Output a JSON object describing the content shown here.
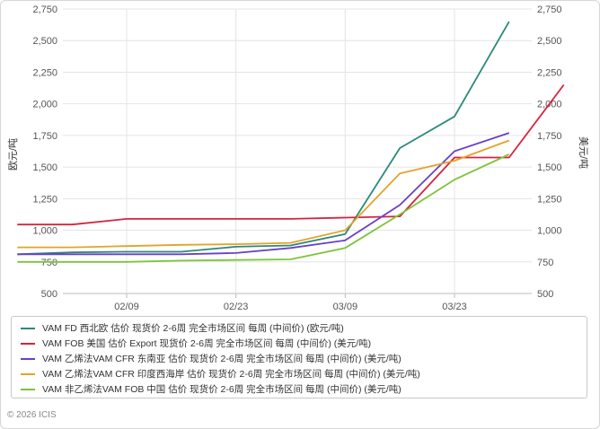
{
  "chart_data": {
    "type": "line",
    "x_ticks": [
      "02/09",
      "02/23",
      "03/09",
      "03/23"
    ],
    "left_axis": {
      "label": "欧元/吨",
      "ylim": [
        500,
        2750
      ],
      "ticks": [
        "500",
        "750",
        "1,000",
        "1,250",
        "1,500",
        "1,750",
        "2,000",
        "2,250",
        "2,500",
        "2,750"
      ]
    },
    "right_axis": {
      "label": "美元/吨",
      "ylim": [
        500,
        2750
      ],
      "ticks": [
        "500",
        "750",
        "1,000",
        "1,250",
        "1,500",
        "1,750",
        "2,000",
        "2,250",
        "2,500",
        "2,750"
      ]
    },
    "grid": true,
    "legend_position": "bottom",
    "series": [
      {
        "name": "VAM FD 西北欧 估价 现货价 2-6周 完全市场区间 每周 (中间价) (欧元/吨)",
        "color": "#2a8a7a",
        "points": [
          [
            "01/26",
            810
          ],
          [
            "02/02",
            825
          ],
          [
            "02/09",
            830
          ],
          [
            "02/16",
            830
          ],
          [
            "02/23",
            870
          ],
          [
            "03/02",
            880
          ],
          [
            "03/09",
            970
          ],
          [
            "03/16",
            1650
          ],
          [
            "03/23",
            1900
          ],
          [
            "03/30",
            2650
          ]
        ]
      },
      {
        "name": "VAM FOB 美国 估价 Export 现货价 2-6周 完全市场区间 每周 (中间价) (美元/吨)",
        "color": "#d4243f",
        "points": [
          [
            "01/26",
            1045
          ],
          [
            "02/02",
            1045
          ],
          [
            "02/09",
            1090
          ],
          [
            "02/16",
            1090
          ],
          [
            "02/23",
            1090
          ],
          [
            "03/02",
            1090
          ],
          [
            "03/09",
            1100
          ],
          [
            "03/16",
            1110
          ],
          [
            "03/23",
            1575
          ],
          [
            "03/30",
            1575
          ],
          [
            "04/06",
            2150
          ]
        ]
      },
      {
        "name": "VAM 乙烯法VAM CFR 东南亚 估价 现货价 2-6周 完全市场区间 每周 (中间价) (美元/吨)",
        "color": "#6a3fc8",
        "points": [
          [
            "01/26",
            810
          ],
          [
            "02/02",
            810
          ],
          [
            "02/09",
            810
          ],
          [
            "02/16",
            810
          ],
          [
            "02/23",
            820
          ],
          [
            "03/02",
            860
          ],
          [
            "03/09",
            920
          ],
          [
            "03/16",
            1200
          ],
          [
            "03/23",
            1625
          ],
          [
            "03/30",
            1770
          ]
        ]
      },
      {
        "name": "VAM 乙烯法VAM CFR 印度西海岸 估价 现货价 2-6周 完全市场区间 每周 (中间价) (美元/吨)",
        "color": "#e3a32a",
        "points": [
          [
            "01/26",
            865
          ],
          [
            "02/02",
            865
          ],
          [
            "02/09",
            875
          ],
          [
            "02/16",
            885
          ],
          [
            "02/23",
            890
          ],
          [
            "03/02",
            900
          ],
          [
            "03/09",
            1000
          ],
          [
            "03/16",
            1450
          ],
          [
            "03/23",
            1550
          ],
          [
            "03/30",
            1710
          ]
        ]
      },
      {
        "name": "VAM 非乙烯法VAM FOB 中国 估价 现货价 2-6周 完全市场区间 每周 (中间价) (美元/吨)",
        "color": "#7dc43a",
        "points": [
          [
            "01/26",
            750
          ],
          [
            "02/02",
            750
          ],
          [
            "02/09",
            750
          ],
          [
            "02/16",
            760
          ],
          [
            "02/23",
            765
          ],
          [
            "03/02",
            770
          ],
          [
            "03/09",
            860
          ],
          [
            "03/16",
            1125
          ],
          [
            "03/23",
            1400
          ],
          [
            "03/30",
            1600
          ]
        ]
      }
    ]
  },
  "copyright": "© 2026 ICIS"
}
